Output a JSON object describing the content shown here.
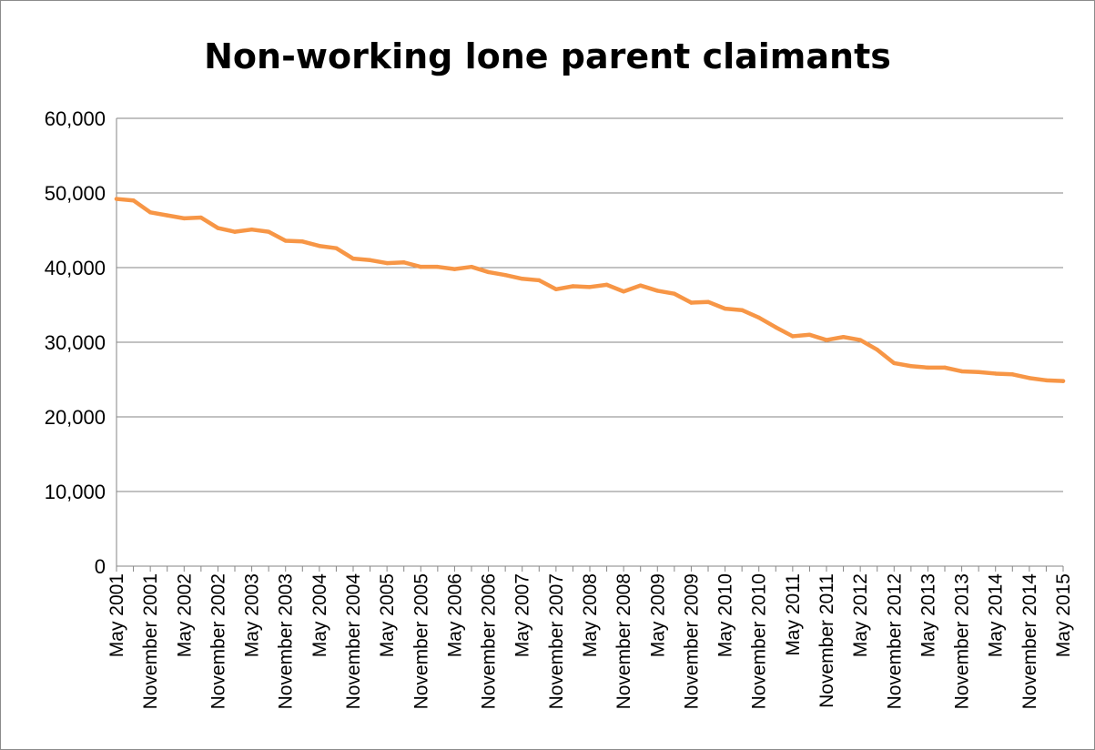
{
  "chart_data": {
    "type": "line",
    "title": "Non-working lone parent claimants",
    "xlabel": "",
    "ylabel": "",
    "ylim": [
      0,
      60000
    ],
    "yticks": [
      0,
      10000,
      20000,
      30000,
      40000,
      50000,
      60000
    ],
    "ytick_labels": [
      "0",
      "10,000",
      "20,000",
      "30,000",
      "40,000",
      "50,000",
      "60,000"
    ],
    "grid": true,
    "legend": "none",
    "line_color": "#f79646",
    "x_tick_labels": [
      "May 2001",
      "November 2001",
      "May 2002",
      "November 2002",
      "May 2003",
      "November 2003",
      "May 2004",
      "November 2004",
      "May 2005",
      "November 2005",
      "May 2006",
      "November 2006",
      "May 2007",
      "November 2007",
      "May 2008",
      "November 2008",
      "May 2009",
      "November 2009",
      "May 2010",
      "November 2010",
      "May 2011",
      "November 2011",
      "May 2012",
      "November 2012",
      "May 2013",
      "November 2013",
      "May 2014",
      "November 2014",
      "May 2015"
    ],
    "series": [
      {
        "values": [
          49200,
          49000,
          47400,
          47000,
          46600,
          46700,
          45300,
          44800,
          45100,
          44800,
          43600,
          43500,
          42900,
          42600,
          41200,
          41000,
          40600,
          40700,
          40100,
          40100,
          39800,
          40100,
          39400,
          39000,
          38500,
          38300,
          37100,
          37500,
          37400,
          37700,
          36800,
          37600,
          36900,
          36500,
          35300,
          35400,
          34500,
          34300,
          33300,
          32000,
          30800,
          31000,
          30300,
          30700,
          30300,
          29000,
          27200,
          26800,
          26600,
          26600,
          26100,
          26000,
          25800,
          25700,
          25200,
          24900,
          24800
        ]
      }
    ]
  }
}
